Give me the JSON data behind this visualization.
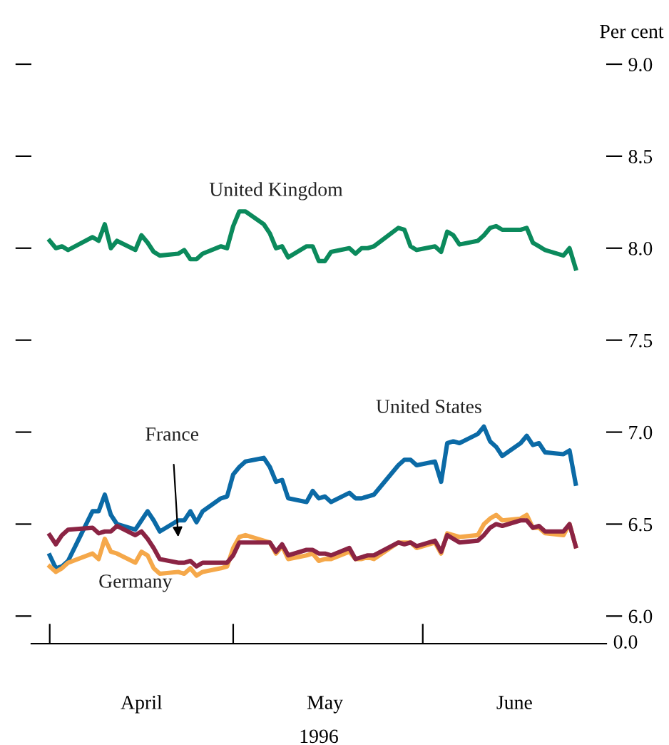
{
  "chart_data": {
    "type": "line",
    "x": [
      "1996-04-01",
      "1996-04-02",
      "1996-04-03",
      "1996-04-04",
      "1996-04-08",
      "1996-04-09",
      "1996-04-10",
      "1996-04-11",
      "1996-04-12",
      "1996-04-15",
      "1996-04-16",
      "1996-04-17",
      "1996-04-18",
      "1996-04-19",
      "1996-04-22",
      "1996-04-23",
      "1996-04-24",
      "1996-04-25",
      "1996-04-26",
      "1996-04-29",
      "1996-04-30",
      "1996-05-01",
      "1996-05-02",
      "1996-05-03",
      "1996-05-06",
      "1996-05-07",
      "1996-05-08",
      "1996-05-09",
      "1996-05-10",
      "1996-05-13",
      "1996-05-14",
      "1996-05-15",
      "1996-05-16",
      "1996-05-17",
      "1996-05-20",
      "1996-05-21",
      "1996-05-22",
      "1996-05-23",
      "1996-05-24",
      "1996-05-28",
      "1996-05-29",
      "1996-05-30",
      "1996-05-31",
      "1996-06-03",
      "1996-06-04",
      "1996-06-05",
      "1996-06-06",
      "1996-06-07",
      "1996-06-10",
      "1996-06-11",
      "1996-06-12",
      "1996-06-13",
      "1996-06-14",
      "1996-06-17",
      "1996-06-18",
      "1996-06-19",
      "1996-06-20",
      "1996-06-21",
      "1996-06-24",
      "1996-06-25",
      "1996-06-26"
    ],
    "series": [
      {
        "name": "United Kingdom",
        "color": "#0b8a5c",
        "values": [
          8.04,
          8.0,
          8.01,
          7.99,
          8.06,
          8.04,
          8.13,
          8.0,
          8.04,
          7.99,
          8.07,
          8.03,
          7.98,
          7.96,
          7.97,
          7.99,
          7.94,
          7.94,
          7.97,
          8.01,
          8.0,
          8.12,
          8.2,
          8.2,
          8.13,
          8.08,
          8.0,
          8.01,
          7.95,
          8.01,
          8.01,
          7.93,
          7.93,
          7.98,
          8.0,
          7.97,
          8.0,
          8.0,
          8.01,
          8.11,
          8.1,
          8.01,
          7.99,
          8.01,
          7.98,
          8.09,
          8.07,
          8.02,
          8.04,
          8.07,
          8.11,
          8.12,
          8.1,
          8.1,
          8.11,
          8.03,
          8.01,
          7.99,
          7.96,
          8.0,
          7.89
        ]
      },
      {
        "name": "United States",
        "color": "#0b6aa6",
        "values": [
          6.33,
          6.26,
          6.27,
          6.3,
          6.57,
          6.57,
          6.66,
          6.55,
          6.5,
          6.47,
          6.52,
          6.57,
          6.52,
          6.46,
          6.52,
          6.52,
          6.57,
          6.51,
          6.57,
          6.64,
          6.65,
          6.77,
          6.81,
          6.84,
          6.86,
          6.81,
          6.73,
          6.74,
          6.64,
          6.62,
          6.68,
          6.64,
          6.65,
          6.62,
          6.67,
          6.64,
          6.64,
          6.65,
          6.66,
          6.82,
          6.85,
          6.85,
          6.82,
          6.84,
          6.73,
          6.94,
          6.95,
          6.94,
          6.99,
          7.03,
          6.95,
          6.92,
          6.87,
          6.94,
          6.98,
          6.93,
          6.94,
          6.89,
          6.88,
          6.9,
          6.72
        ]
      },
      {
        "name": "Germany",
        "color": "#f5a84a",
        "values": [
          6.27,
          6.24,
          6.26,
          6.29,
          6.34,
          6.31,
          6.42,
          6.35,
          6.34,
          6.29,
          6.35,
          6.33,
          6.26,
          6.23,
          6.24,
          6.23,
          6.26,
          6.22,
          6.24,
          6.26,
          6.27,
          6.37,
          6.43,
          6.44,
          6.41,
          6.4,
          6.34,
          6.38,
          6.31,
          6.33,
          6.34,
          6.3,
          6.31,
          6.31,
          6.35,
          6.31,
          6.31,
          6.32,
          6.31,
          6.4,
          6.4,
          6.4,
          6.37,
          6.4,
          6.34,
          6.45,
          6.44,
          6.43,
          6.44,
          6.5,
          6.53,
          6.55,
          6.52,
          6.53,
          6.55,
          6.48,
          6.48,
          6.45,
          6.44,
          6.5,
          6.38
        ]
      },
      {
        "name": "France",
        "color": "#8b2444",
        "values": [
          6.44,
          6.39,
          6.44,
          6.47,
          6.48,
          6.45,
          6.46,
          6.46,
          6.49,
          6.44,
          6.46,
          6.42,
          6.37,
          6.31,
          6.29,
          6.29,
          6.3,
          6.27,
          6.29,
          6.29,
          6.29,
          6.33,
          6.4,
          6.4,
          6.4,
          6.4,
          6.35,
          6.39,
          6.33,
          6.36,
          6.36,
          6.34,
          6.34,
          6.33,
          6.37,
          6.31,
          6.32,
          6.33,
          6.33,
          6.4,
          6.39,
          6.4,
          6.38,
          6.41,
          6.35,
          6.44,
          6.42,
          6.4,
          6.41,
          6.44,
          6.48,
          6.5,
          6.49,
          6.52,
          6.52,
          6.48,
          6.49,
          6.46,
          6.46,
          6.5,
          6.38
        ]
      }
    ],
    "xlabel": "1996",
    "ylabel": "Per cent",
    "xlim": [
      "1996-03-29",
      "1996-07-01"
    ],
    "xticks": [
      {
        "value": "1996-04-01",
        "label": null
      },
      {
        "value": "1996-04-16",
        "label": "April"
      },
      {
        "value": "1996-05-01",
        "label": null
      },
      {
        "value": "1996-05-16",
        "label": "May"
      },
      {
        "value": "1996-06-01",
        "label": null
      },
      {
        "value": "1996-06-16",
        "label": "June"
      }
    ],
    "ylim": [
      5.85,
      9.0
    ],
    "yticks": [
      {
        "value": 6.0,
        "label": "6.0"
      },
      6.5,
      {
        "value": 7.0,
        "label": "7.0"
      },
      7.5,
      {
        "value": 8.0,
        "label": "8.0"
      },
      8.5,
      {
        "value": 9.0,
        "label": "9.0"
      }
    ],
    "annotations": [
      "0.0"
    ],
    "grid": false,
    "legend": false,
    "marker": "none",
    "line_style": "solid"
  }
}
